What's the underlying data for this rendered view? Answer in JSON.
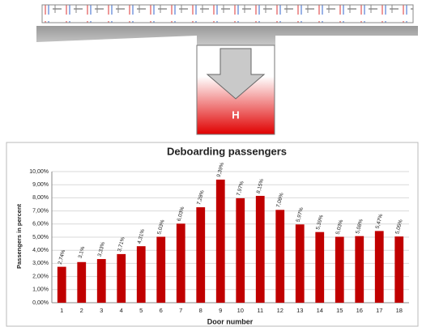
{
  "diagram": {
    "box_label": "H"
  },
  "chart_data": {
    "type": "bar",
    "title": "Deboarding passengers",
    "x_label": "Door number",
    "y_label": "Passengers in percent",
    "categories": [
      "1",
      "2",
      "3",
      "4",
      "5",
      "6",
      "7",
      "8",
      "9",
      "10",
      "11",
      "12",
      "13",
      "14",
      "15",
      "16",
      "17",
      "18"
    ],
    "values": [
      2.74,
      3.1,
      3.33,
      3.71,
      4.31,
      5.03,
      6.03,
      7.28,
      9.39,
      7.97,
      8.15,
      7.08,
      5.97,
      5.39,
      5.03,
      5.08,
      5.47,
      5.05
    ],
    "value_labels": [
      "2,74%",
      "3,1%",
      "3,33%",
      "3,71%",
      "4,31%",
      "5,03%",
      "6,03%",
      "7,28%",
      "9,39%",
      "7,97%",
      "8,15%",
      "7,08%",
      "5,97%",
      "5,39%",
      "5,03%",
      "5,08%",
      "5,47%",
      "5,05%"
    ],
    "color": "#c00000",
    "ylim": [
      0,
      10
    ],
    "yticks": [
      {
        "value": 0,
        "label": "0,00%"
      },
      {
        "value": 1,
        "label": "1,00%"
      },
      {
        "value": 2,
        "label": "2,00%"
      },
      {
        "value": 3,
        "label": "3,00%"
      },
      {
        "value": 4,
        "label": "4,00%"
      },
      {
        "value": 5,
        "label": "5,00%"
      },
      {
        "value": 6,
        "label": "6,00%"
      },
      {
        "value": 7,
        "label": "7,00%"
      },
      {
        "value": 8,
        "label": "8,00%"
      },
      {
        "value": 9,
        "label": "9,00%"
      },
      {
        "value": 10,
        "label": "10,00%"
      }
    ],
    "grid": true
  }
}
